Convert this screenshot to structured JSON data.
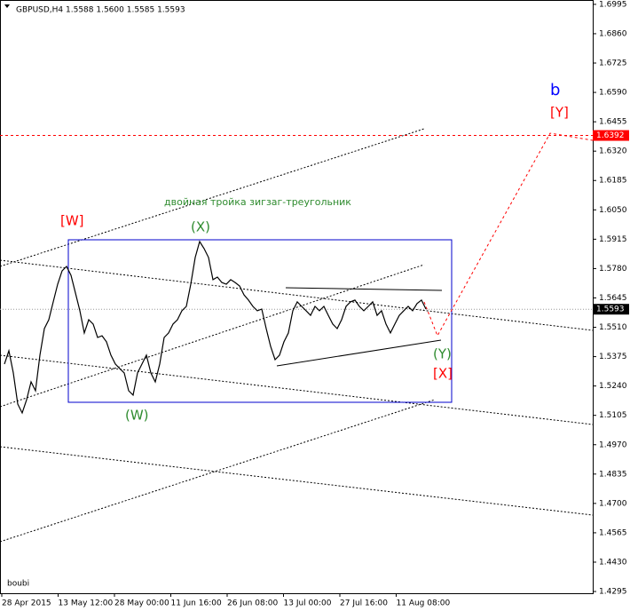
{
  "chart_data": {
    "type": "line",
    "header": "GBPUSD,H4  1.5588 1.5600 1.5585 1.5593",
    "watermark": "boubi",
    "subtitle": "двойная тройка зигзаг-треугольник",
    "annotations": [
      {
        "text": "[W]",
        "color": "#ff0000"
      },
      {
        "text": "(W)",
        "color": "#2e8b2e"
      },
      {
        "text": "(X)",
        "color": "#2e8b2e"
      },
      {
        "text": "(Y)",
        "color": "#2e8b2e"
      },
      {
        "text": "[X]",
        "color": "#ff0000"
      },
      {
        "text": "[Y]",
        "color": "#ff0000"
      },
      {
        "text": "b",
        "color": "#0000ff"
      }
    ],
    "x_labels": [
      "28 Apr 2015",
      "13 May 12:00",
      "28 May 00:00",
      "11 Jun 16:00",
      "26 Jun 08:00",
      "13 Jul 00:00",
      "27 Jul 16:00",
      "11 Aug 08:00"
    ],
    "series": [
      {
        "name": "GBPUSD",
        "color": "#000000",
        "values": [
          1.5341,
          1.5402,
          1.53,
          1.5157,
          1.5116,
          1.5177,
          1.5259,
          1.5218,
          1.5382,
          1.5504,
          1.5545,
          1.5627,
          1.5708,
          1.577,
          1.579,
          1.5749,
          1.5668,
          1.5586,
          1.5484,
          1.5545,
          1.5525,
          1.5463,
          1.5471,
          1.5443,
          1.5382,
          1.5341,
          1.532,
          1.53,
          1.5218,
          1.5198,
          1.53,
          1.5341,
          1.5382,
          1.53,
          1.5259,
          1.5341,
          1.5463,
          1.5484,
          1.5525,
          1.5545,
          1.5586,
          1.5606,
          1.5708,
          1.5831,
          1.5904,
          1.5872,
          1.5831,
          1.5729,
          1.5741,
          1.5716,
          1.5708,
          1.5729,
          1.5716,
          1.57,
          1.5659,
          1.5635,
          1.5606,
          1.5586,
          1.5594,
          1.5504,
          1.5422,
          1.5361,
          1.5382,
          1.5443,
          1.5484,
          1.5586,
          1.5627,
          1.5606,
          1.5586,
          1.5565,
          1.5606,
          1.5586,
          1.5606,
          1.5565,
          1.5525,
          1.5504,
          1.5545,
          1.5606,
          1.5627,
          1.5635,
          1.5606,
          1.5586,
          1.5606,
          1.5627,
          1.5565,
          1.5586,
          1.5525,
          1.5484,
          1.5525,
          1.5565,
          1.5586,
          1.5606,
          1.5586,
          1.5619,
          1.5635,
          1.5594
        ]
      }
    ],
    "levels": [
      {
        "value": 1.6392,
        "color": "#ff0000"
      },
      {
        "value": 1.5593,
        "color": "#000000"
      }
    ],
    "ylim": [
      1.4287,
      1.7015
    ],
    "yticks": [
      1.6995,
      {
        "value": 1.686,
        "label": "1.6860"
      },
      1.6725,
      {
        "value": 1.659,
        "label": "1.6590"
      },
      1.6455,
      {
        "value": 1.632,
        "label": "1.6320"
      },
      1.6185,
      {
        "value": 1.605,
        "label": "1.6050"
      },
      1.5915,
      {
        "value": 1.578,
        "label": "1.5780"
      },
      1.5645,
      {
        "value": 1.551,
        "label": "1.5510"
      },
      1.5375,
      {
        "value": 1.524,
        "label": "1.5240"
      },
      1.5105,
      {
        "value": 1.497,
        "label": "1.4970"
      },
      1.4835,
      {
        "value": 1.47,
        "label": "1.4700"
      },
      1.4565,
      {
        "value": 1.443,
        "label": "1.4430"
      },
      1.4295
    ]
  }
}
